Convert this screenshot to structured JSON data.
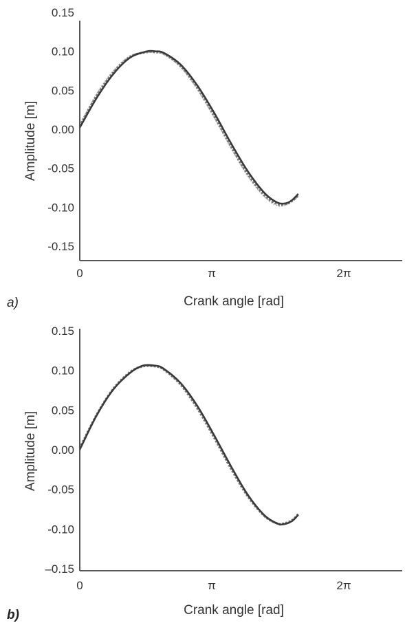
{
  "colors": {
    "axis": "#555555",
    "series_solid": "#3a3a3a",
    "series_dark_dotted": "#7a7a7a",
    "series_light_dotted": "#bcbcbc"
  },
  "chart_data": [
    {
      "type": "line",
      "panel_label": "a)",
      "xlabel": "Crank angle [rad]",
      "ylabel": "Amplitude [m]",
      "xlim": [
        0,
        7.5
      ],
      "ylim": [
        -0.16,
        0.15
      ],
      "x_ticks": [
        {
          "value": 0,
          "label": "0"
        },
        {
          "value": 3.14159,
          "label": "π"
        },
        {
          "value": 6.28319,
          "label": "2π"
        }
      ],
      "y_ticks": [
        {
          "value": 0.15,
          "label": "0.15"
        },
        {
          "value": 0.1,
          "label": "0.10"
        },
        {
          "value": 0.05,
          "label": "0.05"
        },
        {
          "value": 0.0,
          "label": "0.00"
        },
        {
          "value": -0.05,
          "label": "-0.05"
        },
        {
          "value": -0.1,
          "label": "-0.10"
        },
        {
          "value": -0.15,
          "label": "-0.15"
        }
      ],
      "grid": false,
      "series": [
        {
          "style": "solid",
          "x": [
            0,
            0.4,
            0.8,
            1.2,
            1.6,
            1.8,
            2.0,
            2.4,
            2.8,
            3.2,
            3.6,
            4.0,
            4.4,
            4.7,
            4.9,
            5.05,
            5.2
          ],
          "y": [
            0.002,
            0.04,
            0.071,
            0.092,
            0.1,
            0.1,
            0.098,
            0.083,
            0.056,
            0.021,
            -0.018,
            -0.054,
            -0.082,
            -0.094,
            -0.095,
            -0.091,
            -0.083
          ]
        },
        {
          "style": "dotted-dark",
          "x": [
            0,
            0.4,
            0.8,
            1.2,
            1.6,
            1.8,
            2.0,
            2.4,
            2.8,
            3.2,
            3.6,
            4.0,
            4.4,
            4.7,
            4.9,
            5.05,
            5.2
          ],
          "y": [
            0.004,
            0.043,
            0.073,
            0.093,
            0.099,
            0.099,
            0.097,
            0.081,
            0.053,
            0.017,
            -0.022,
            -0.058,
            -0.085,
            -0.096,
            -0.096,
            -0.092,
            -0.085
          ]
        },
        {
          "style": "dotted-light",
          "x": [
            0,
            0.4,
            0.8,
            1.2,
            1.6,
            1.8,
            2.0,
            2.4,
            2.8,
            3.2,
            3.6,
            4.0,
            4.4,
            4.7,
            4.9,
            5.05,
            5.2
          ],
          "y": [
            0.006,
            0.045,
            0.075,
            0.094,
            0.099,
            0.098,
            0.096,
            0.08,
            0.051,
            0.015,
            -0.024,
            -0.06,
            -0.087,
            -0.098,
            -0.097,
            -0.093,
            -0.086
          ]
        }
      ]
    },
    {
      "type": "line",
      "panel_label": "b)",
      "xlabel": "Crank angle [rad]",
      "ylabel": "Amplitude [m]",
      "xlim": [
        0,
        7.5
      ],
      "ylim": [
        -0.15,
        0.15
      ],
      "x_ticks": [
        {
          "value": 0,
          "label": "0"
        },
        {
          "value": 3.14159,
          "label": "π"
        },
        {
          "value": 6.28319,
          "label": "2π"
        }
      ],
      "y_ticks": [
        {
          "value": 0.15,
          "label": "0.15"
        },
        {
          "value": 0.1,
          "label": "0.10"
        },
        {
          "value": 0.05,
          "label": "0.05"
        },
        {
          "value": 0.0,
          "label": "0.00"
        },
        {
          "value": -0.05,
          "label": "-0.05"
        },
        {
          "value": -0.1,
          "label": "-0.10"
        },
        {
          "value": -0.15,
          "label": "–0.15"
        }
      ],
      "grid": false,
      "series": [
        {
          "style": "solid",
          "x": [
            0,
            0.4,
            0.8,
            1.2,
            1.5,
            1.8,
            2.0,
            2.4,
            2.8,
            3.2,
            3.6,
            4.0,
            4.4,
            4.7,
            4.85,
            5.05,
            5.2
          ],
          "y": [
            0.0,
            0.043,
            0.076,
            0.097,
            0.106,
            0.106,
            0.102,
            0.084,
            0.055,
            0.018,
            -0.021,
            -0.057,
            -0.083,
            -0.093,
            -0.094,
            -0.09,
            -0.082
          ]
        },
        {
          "style": "dotted-dark",
          "x": [
            0,
            0.4,
            0.8,
            1.2,
            1.5,
            1.8,
            2.0,
            2.4,
            2.8,
            3.2,
            3.6,
            4.0,
            4.4,
            4.7,
            4.85,
            5.05,
            5.2
          ],
          "y": [
            0.002,
            0.044,
            0.077,
            0.098,
            0.105,
            0.105,
            0.101,
            0.082,
            0.052,
            0.015,
            -0.024,
            -0.059,
            -0.084,
            -0.093,
            -0.093,
            -0.089,
            -0.081
          ]
        },
        {
          "style": "dotted-light",
          "x": [
            0,
            0.4,
            0.8,
            1.2,
            1.5,
            1.8,
            2.0,
            2.4,
            2.8,
            3.2,
            3.6,
            4.0,
            4.4,
            4.7,
            4.85,
            5.05,
            5.2
          ],
          "y": [
            0.001,
            0.043,
            0.076,
            0.097,
            0.105,
            0.105,
            0.101,
            0.083,
            0.054,
            0.017,
            -0.022,
            -0.058,
            -0.084,
            -0.094,
            -0.094,
            -0.09,
            -0.082
          ]
        }
      ]
    }
  ]
}
